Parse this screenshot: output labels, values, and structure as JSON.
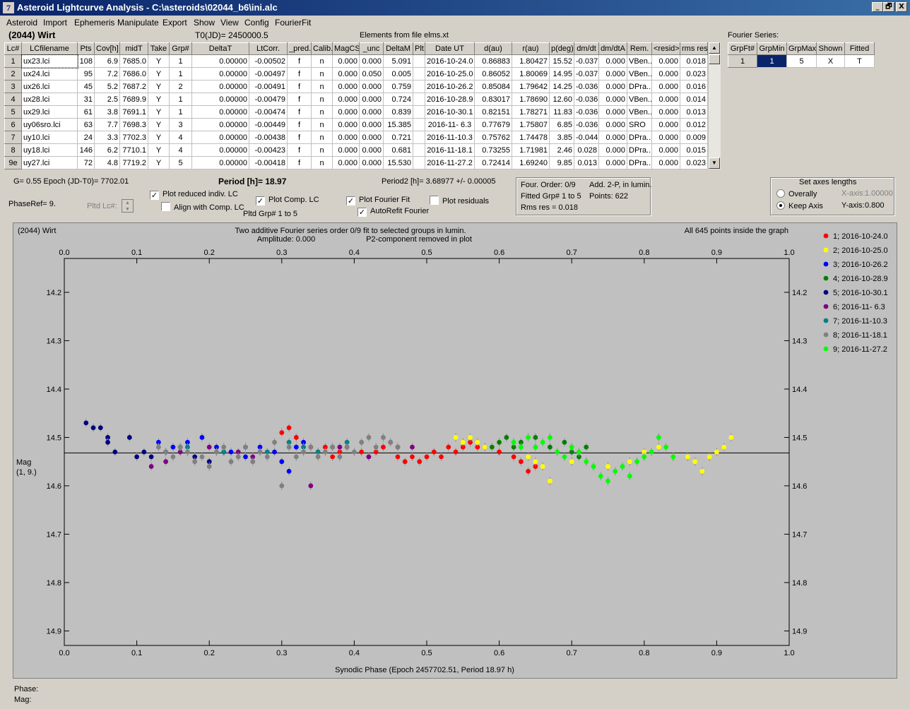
{
  "window": {
    "title": "Asteroid Lightcurve Analysis - C:\\asteroids\\02044_b6\\ini.alc",
    "app_icon": "lightcurve-app-icon",
    "minimize": "_",
    "maximize": "🗗",
    "close": "X"
  },
  "menu": [
    "Asteroid",
    "Import",
    "Ephemeris",
    "Manipulate",
    "Export",
    "Show",
    "View",
    "Config",
    "FourierFit"
  ],
  "header": {
    "asteroid": "(2044) Wirt",
    "t0": "T0(JD)= 2450000.5",
    "elements": "Elements from file elms.xt"
  },
  "table": {
    "columns": [
      "Lc#",
      "LCfilename",
      "Pts",
      "Cov[h]",
      "midT",
      "Take",
      "Grp#",
      "DeltaT",
      "LtCorr.",
      "_pred.",
      "Calib.",
      "MagCS",
      "_unc",
      "DeltaM",
      "Plt",
      "Date UT",
      "d(au)",
      "r(au)",
      "p(deg)",
      "dm/dt",
      "dm/dtA",
      "Rem.",
      "<resid>",
      "rms res"
    ],
    "rows": [
      [
        "1",
        "ux23.lci",
        "108",
        "6.9",
        "7685.0",
        "Y",
        "1",
        "0.00000",
        "-0.00502",
        "f",
        "n",
        "0.000",
        "0.000",
        "5.091",
        "",
        "2016-10-24.0",
        "0.86883",
        "1.80427",
        "15.52",
        "-0.037",
        "0.000",
        "VBen..",
        "0.000",
        "0.018"
      ],
      [
        "2",
        "ux24.lci",
        "95",
        "7.2",
        "7686.0",
        "Y",
        "1",
        "0.00000",
        "-0.00497",
        "f",
        "n",
        "0.000",
        "0.050",
        "0.005",
        "",
        "2016-10-25.0",
        "0.86052",
        "1.80069",
        "14.95",
        "-0.037",
        "0.000",
        "VBen..",
        "0.000",
        "0.023"
      ],
      [
        "3",
        "ux26.lci",
        "45",
        "5.2",
        "7687.2",
        "Y",
        "2",
        "0.00000",
        "-0.00491",
        "f",
        "n",
        "0.000",
        "0.000",
        "0.759",
        "",
        "2016-10-26.2",
        "0.85084",
        "1.79642",
        "14.25",
        "-0.036",
        "0.000",
        "DPra..",
        "0.000",
        "0.016"
      ],
      [
        "4",
        "ux28.lci",
        "31",
        "2.5",
        "7689.9",
        "Y",
        "1",
        "0.00000",
        "-0.00479",
        "f",
        "n",
        "0.000",
        "0.000",
        "0.724",
        "",
        "2016-10-28.9",
        "0.83017",
        "1.78690",
        "12.60",
        "-0.036",
        "0.000",
        "VBen..",
        "0.000",
        "0.014"
      ],
      [
        "5",
        "ux29.lci",
        "61",
        "3.8",
        "7691.1",
        "Y",
        "1",
        "0.00000",
        "-0.00474",
        "f",
        "n",
        "0.000",
        "0.000",
        "0.839",
        "",
        "2016-10-30.1",
        "0.82151",
        "1.78271",
        "11.83",
        "-0.036",
        "0.000",
        "VBen..",
        "0.000",
        "0.013"
      ],
      [
        "6",
        "uy06sro.lci",
        "63",
        "7.7",
        "7698.3",
        "Y",
        "3",
        "0.00000",
        "-0.00449",
        "f",
        "n",
        "0.000",
        "0.000",
        "15.385",
        "",
        "2016-11- 6.3",
        "0.77679",
        "1.75807",
        "6.85",
        "-0.036",
        "0.000",
        "SRO",
        "0.000",
        "0.012"
      ],
      [
        "7",
        "uy10.lci",
        "24",
        "3.3",
        "7702.3",
        "Y",
        "4",
        "0.00000",
        "-0.00438",
        "f",
        "n",
        "0.000",
        "0.000",
        "0.721",
        "",
        "2016-11-10.3",
        "0.75762",
        "1.74478",
        "3.85",
        "-0.044",
        "0.000",
        "DPra..",
        "0.000",
        "0.009"
      ],
      [
        "8",
        "uy18.lci",
        "146",
        "6.2",
        "7710.1",
        "Y",
        "4",
        "0.00000",
        "-0.00423",
        "f",
        "n",
        "0.000",
        "0.000",
        "0.681",
        "",
        "2016-11-18.1",
        "0.73255",
        "1.71981",
        "2.46",
        "0.028",
        "0.000",
        "DPra..",
        "0.000",
        "0.015"
      ],
      [
        "9e",
        "uy27.lci",
        "72",
        "4.8",
        "7719.2",
        "Y",
        "5",
        "0.00000",
        "-0.00418",
        "f",
        "n",
        "0.000",
        "0.000",
        "15.530",
        "",
        "2016-11-27.2",
        "0.72414",
        "1.69240",
        "9.85",
        "0.013",
        "0.000",
        "DPra..",
        "0.000",
        "0.023"
      ]
    ]
  },
  "fourier_series": {
    "label": "Fourier Series:",
    "columns": [
      "GrpFt#",
      "GrpMin",
      "GrpMax",
      "Shown",
      "Fitted"
    ],
    "row": [
      "1",
      "1",
      "5",
      "X",
      "T"
    ]
  },
  "controls": {
    "g_epoch": "G= 0.55   Epoch (JD-T0)= 7702.01",
    "period": "Period [h]= 18.97",
    "period2": "Period2 [h]= 3.68977 +/- 0.00005",
    "phase_ref": "PhaseRef= 9.",
    "pltd_lc": "Pltd Lc#:",
    "plot_reduced": "Plot reduced indiv. LC",
    "align": "Align with Comp. LC",
    "plot_comp": "Plot Comp. LC",
    "pltd_grp": "Pltd Grp#  1   to   5",
    "plot_fourier": "Plot Fourier Fit",
    "autorefit": "AutoRefit Fourier",
    "plot_residuals": "Plot residuals",
    "info_order": "Four. Order:  0/9",
    "info_add": "Add. 2-P, in lumin.",
    "info_fitted": "Fitted Grp# 1 to 5",
    "info_points": "Points: 622",
    "info_rms": "Rms res     = 0.018",
    "axes_title": "Set axes lengths",
    "overally": "Overally",
    "keep_axis": "Keep Axis",
    "x_axis_label": "X-axis:",
    "x_axis_value": "1.00000",
    "y_axis_label": "Y-axis:",
    "y_axis_value": "0.800"
  },
  "plot": {
    "corner_label": "(2044) Wirt",
    "title1": "Two additive Fourier series order 0/9 fit to selected groups in lumin.",
    "title2_left": "Amplitude: 0.000",
    "title2_right": "P2-component removed in plot",
    "points_note": "All 645 points inside the graph",
    "ylabel1": "Mag",
    "ylabel2": "(1, 9.)"
  },
  "status": {
    "phase": "Phase:",
    "mag": "Mag:"
  },
  "chart_data": {
    "type": "scatter",
    "xlabel": "Synodic Phase (Epoch 2457702.51, Period 18.97 h)",
    "ylabel": "Mag",
    "xlim": [
      0.0,
      1.0
    ],
    "ylim": [
      14.13,
      14.93
    ],
    "y_inverted": true,
    "xticks": [
      "0.0",
      "0.1",
      "0.2",
      "0.3",
      "0.4",
      "0.5",
      "0.6",
      "0.7",
      "0.8",
      "0.9",
      "1.0"
    ],
    "yticks": [
      "14.2",
      "14.3",
      "14.4",
      "14.5",
      "14.6",
      "14.7",
      "14.8",
      "14.9"
    ],
    "fit_line_mag": 14.532,
    "grid": false,
    "legend_position": "right",
    "series": [
      {
        "name": "1; 2016-10-24.0",
        "color": "#ff0000",
        "points": [
          [
            0.3,
            14.49
          ],
          [
            0.31,
            14.48
          ],
          [
            0.32,
            14.5
          ],
          [
            0.33,
            14.51
          ],
          [
            0.34,
            14.52
          ],
          [
            0.35,
            14.53
          ],
          [
            0.36,
            14.52
          ],
          [
            0.37,
            14.54
          ],
          [
            0.38,
            14.53
          ],
          [
            0.39,
            14.52
          ],
          [
            0.41,
            14.53
          ],
          [
            0.42,
            14.54
          ],
          [
            0.43,
            14.53
          ],
          [
            0.44,
            14.52
          ],
          [
            0.45,
            14.51
          ],
          [
            0.46,
            14.54
          ],
          [
            0.47,
            14.55
          ],
          [
            0.48,
            14.54
          ],
          [
            0.49,
            14.55
          ],
          [
            0.5,
            14.54
          ],
          [
            0.51,
            14.53
          ],
          [
            0.52,
            14.54
          ],
          [
            0.53,
            14.52
          ],
          [
            0.54,
            14.53
          ],
          [
            0.55,
            14.52
          ],
          [
            0.56,
            14.51
          ],
          [
            0.57,
            14.52
          ],
          [
            0.58,
            14.52
          ],
          [
            0.6,
            14.53
          ],
          [
            0.62,
            14.54
          ],
          [
            0.63,
            14.55
          ],
          [
            0.64,
            14.57
          ],
          [
            0.65,
            14.56
          ]
        ]
      },
      {
        "name": "2; 2016-10-25.0",
        "color": "#ffff00",
        "points": [
          [
            0.54,
            14.5
          ],
          [
            0.55,
            14.51
          ],
          [
            0.56,
            14.5
          ],
          [
            0.57,
            14.51
          ],
          [
            0.58,
            14.52
          ],
          [
            0.6,
            14.51
          ],
          [
            0.62,
            14.52
          ],
          [
            0.64,
            14.54
          ],
          [
            0.65,
            14.55
          ],
          [
            0.66,
            14.56
          ],
          [
            0.67,
            14.59
          ],
          [
            0.7,
            14.55
          ],
          [
            0.72,
            14.55
          ],
          [
            0.75,
            14.56
          ],
          [
            0.78,
            14.55
          ],
          [
            0.8,
            14.53
          ],
          [
            0.82,
            14.52
          ],
          [
            0.84,
            14.54
          ],
          [
            0.86,
            14.54
          ],
          [
            0.87,
            14.55
          ],
          [
            0.88,
            14.57
          ],
          [
            0.89,
            14.54
          ],
          [
            0.9,
            14.53
          ],
          [
            0.91,
            14.52
          ],
          [
            0.92,
            14.5
          ]
        ]
      },
      {
        "name": "3; 2016-10-26.2",
        "color": "#0000ff",
        "points": [
          [
            0.13,
            14.51
          ],
          [
            0.15,
            14.52
          ],
          [
            0.17,
            14.51
          ],
          [
            0.19,
            14.5
          ],
          [
            0.21,
            14.52
          ],
          [
            0.23,
            14.53
          ],
          [
            0.25,
            14.54
          ],
          [
            0.27,
            14.52
          ],
          [
            0.29,
            14.53
          ],
          [
            0.3,
            14.55
          ],
          [
            0.31,
            14.57
          ],
          [
            0.32,
            14.52
          ],
          [
            0.33,
            14.51
          ]
        ]
      },
      {
        "name": "4; 2016-10-28.9",
        "color": "#008000",
        "points": [
          [
            0.59,
            14.52
          ],
          [
            0.6,
            14.51
          ],
          [
            0.61,
            14.5
          ],
          [
            0.62,
            14.52
          ],
          [
            0.63,
            14.51
          ],
          [
            0.65,
            14.5
          ],
          [
            0.67,
            14.52
          ],
          [
            0.69,
            14.51
          ],
          [
            0.7,
            14.53
          ],
          [
            0.71,
            14.54
          ],
          [
            0.72,
            14.52
          ]
        ]
      },
      {
        "name": "5; 2016-10-30.1",
        "color": "#000080",
        "points": [
          [
            0.03,
            14.47
          ],
          [
            0.04,
            14.48
          ],
          [
            0.05,
            14.48
          ],
          [
            0.06,
            14.5
          ],
          [
            0.06,
            14.51
          ],
          [
            0.07,
            14.53
          ],
          [
            0.09,
            14.5
          ],
          [
            0.1,
            14.54
          ],
          [
            0.11,
            14.53
          ],
          [
            0.12,
            14.54
          ],
          [
            0.14,
            14.53
          ],
          [
            0.16,
            14.52
          ],
          [
            0.18,
            14.54
          ],
          [
            0.2,
            14.55
          ],
          [
            0.22,
            14.53
          ]
        ]
      },
      {
        "name": "6; 2016-11- 6.3",
        "color": "#800080",
        "points": [
          [
            0.12,
            14.56
          ],
          [
            0.14,
            14.55
          ],
          [
            0.16,
            14.53
          ],
          [
            0.2,
            14.52
          ],
          [
            0.24,
            14.53
          ],
          [
            0.26,
            14.54
          ],
          [
            0.34,
            14.6
          ],
          [
            0.38,
            14.52
          ],
          [
            0.42,
            14.54
          ],
          [
            0.46,
            14.52
          ],
          [
            0.48,
            14.52
          ]
        ]
      },
      {
        "name": "7; 2016-11-10.3",
        "color": "#008080",
        "points": [
          [
            0.17,
            14.52
          ],
          [
            0.22,
            14.53
          ],
          [
            0.25,
            14.52
          ],
          [
            0.28,
            14.53
          ],
          [
            0.31,
            14.51
          ],
          [
            0.33,
            14.52
          ],
          [
            0.35,
            14.53
          ],
          [
            0.37,
            14.52
          ],
          [
            0.39,
            14.51
          ]
        ]
      },
      {
        "name": "8; 2016-11-18.1",
        "color": "#808080",
        "points": [
          [
            0.13,
            14.52
          ],
          [
            0.14,
            14.53
          ],
          [
            0.15,
            14.54
          ],
          [
            0.16,
            14.52
          ],
          [
            0.17,
            14.53
          ],
          [
            0.18,
            14.55
          ],
          [
            0.19,
            14.54
          ],
          [
            0.2,
            14.56
          ],
          [
            0.21,
            14.53
          ],
          [
            0.22,
            14.52
          ],
          [
            0.23,
            14.55
          ],
          [
            0.24,
            14.54
          ],
          [
            0.25,
            14.52
          ],
          [
            0.26,
            14.55
          ],
          [
            0.27,
            14.53
          ],
          [
            0.28,
            14.54
          ],
          [
            0.29,
            14.51
          ],
          [
            0.3,
            14.6
          ],
          [
            0.31,
            14.52
          ],
          [
            0.32,
            14.54
          ],
          [
            0.33,
            14.53
          ],
          [
            0.34,
            14.52
          ],
          [
            0.35,
            14.54
          ],
          [
            0.36,
            14.53
          ],
          [
            0.37,
            14.52
          ],
          [
            0.38,
            14.54
          ],
          [
            0.39,
            14.52
          ],
          [
            0.4,
            14.53
          ],
          [
            0.41,
            14.51
          ],
          [
            0.42,
            14.5
          ],
          [
            0.43,
            14.52
          ],
          [
            0.44,
            14.5
          ],
          [
            0.45,
            14.51
          ],
          [
            0.46,
            14.52
          ]
        ]
      },
      {
        "name": "9; 2016-11-27.2",
        "color": "#00ff00",
        "points": [
          [
            0.62,
            14.51
          ],
          [
            0.63,
            14.52
          ],
          [
            0.64,
            14.5
          ],
          [
            0.65,
            14.52
          ],
          [
            0.66,
            14.51
          ],
          [
            0.67,
            14.5
          ],
          [
            0.68,
            14.53
          ],
          [
            0.69,
            14.54
          ],
          [
            0.7,
            14.52
          ],
          [
            0.71,
            14.53
          ],
          [
            0.72,
            14.55
          ],
          [
            0.73,
            14.56
          ],
          [
            0.74,
            14.58
          ],
          [
            0.75,
            14.59
          ],
          [
            0.76,
            14.57
          ],
          [
            0.77,
            14.56
          ],
          [
            0.78,
            14.58
          ],
          [
            0.79,
            14.55
          ],
          [
            0.8,
            14.54
          ],
          [
            0.81,
            14.53
          ],
          [
            0.82,
            14.5
          ],
          [
            0.83,
            14.52
          ],
          [
            0.84,
            14.54
          ]
        ]
      }
    ]
  }
}
